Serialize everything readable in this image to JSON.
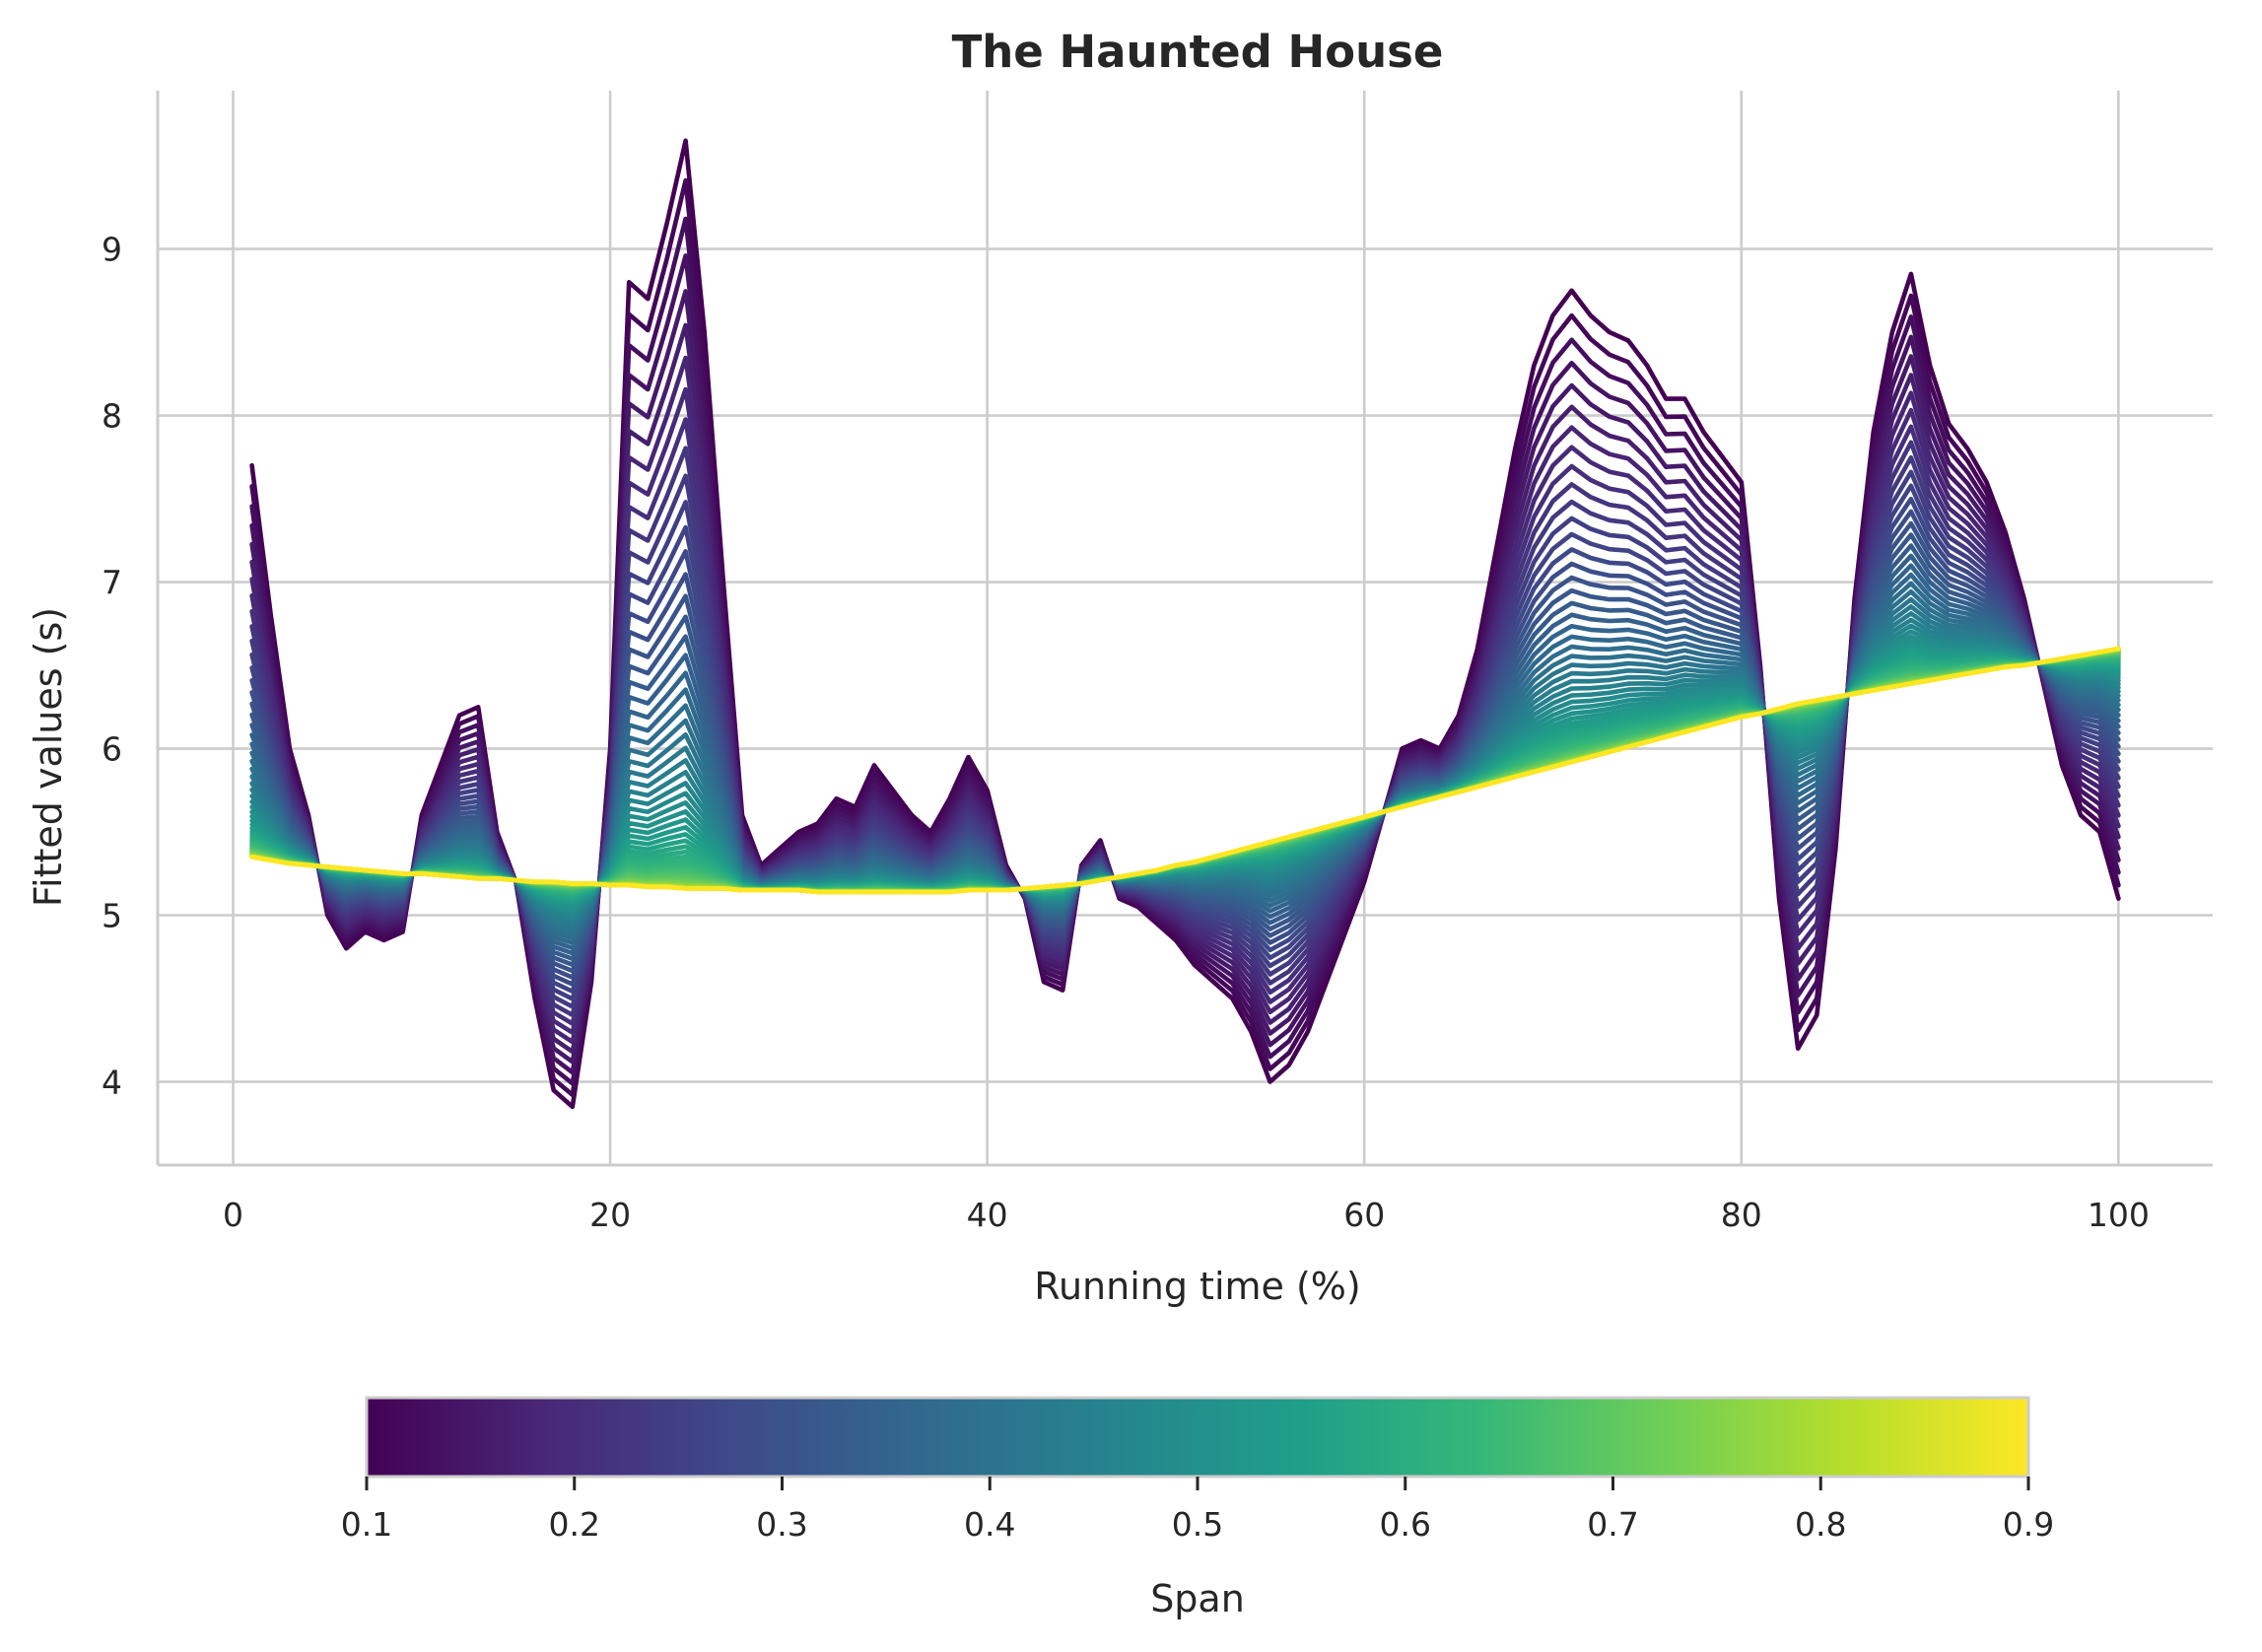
{
  "chart_data": {
    "type": "line",
    "title": "The Haunted House",
    "xlabel": "Running time (%)",
    "ylabel": "Fitted values (s)",
    "xlim": [
      -4,
      105
    ],
    "ylim": [
      3.5,
      9.95
    ],
    "xticks": [
      0,
      20,
      40,
      60,
      80,
      100
    ],
    "yticks": [
      4,
      5,
      6,
      7,
      8,
      9
    ],
    "grid": true,
    "colormap": "viridis",
    "colors": [
      "#440154",
      "#482878",
      "#3e4a89",
      "#31688e",
      "#26828e",
      "#1f9e89",
      "#35b779",
      "#6ece58",
      "#b5de2b",
      "#fde725"
    ],
    "x": [
      1,
      2,
      3,
      4,
      5,
      6,
      7,
      8,
      9,
      10,
      11,
      12,
      13,
      14,
      15,
      16,
      17,
      18,
      19,
      20,
      21,
      22,
      23,
      24,
      25,
      26,
      27,
      28,
      29,
      30,
      31,
      32,
      33,
      34,
      35,
      36,
      37,
      38,
      39,
      40,
      41,
      42,
      43,
      44,
      45,
      46,
      47,
      48,
      49,
      50,
      51,
      52,
      53,
      54,
      55,
      56,
      57,
      58,
      59,
      60,
      61,
      62,
      63,
      64,
      65,
      66,
      67,
      68,
      69,
      70,
      71,
      72,
      73,
      74,
      75,
      76,
      77,
      78,
      79,
      80,
      81,
      82,
      83,
      84,
      85,
      86,
      87,
      88,
      89,
      90,
      91,
      92,
      93,
      94,
      95,
      96,
      97,
      98,
      99,
      100
    ],
    "roughest_span_values": [
      7.7,
      6.8,
      6.0,
      5.6,
      5.0,
      4.8,
      4.9,
      4.85,
      4.9,
      5.6,
      5.9,
      6.2,
      6.25,
      5.5,
      5.2,
      4.5,
      3.95,
      3.85,
      4.6,
      6.0,
      8.8,
      8.7,
      9.15,
      9.65,
      8.5,
      7.0,
      5.6,
      5.3,
      5.4,
      5.5,
      5.55,
      5.7,
      5.65,
      5.9,
      5.75,
      5.6,
      5.5,
      5.7,
      5.95,
      5.75,
      5.3,
      5.1,
      4.6,
      4.55,
      5.3,
      5.45,
      5.1,
      5.05,
      4.95,
      4.85,
      4.7,
      4.6,
      4.5,
      4.3,
      4.0,
      4.1,
      4.3,
      4.6,
      4.9,
      5.2,
      5.6,
      6.0,
      6.05,
      6.0,
      6.2,
      6.6,
      7.2,
      7.8,
      8.3,
      8.6,
      8.75,
      8.6,
      8.5,
      8.45,
      8.3,
      8.1,
      8.1,
      7.9,
      7.75,
      7.6,
      6.5,
      5.1,
      4.2,
      4.4,
      5.4,
      6.9,
      7.9,
      8.5,
      8.85,
      8.3,
      7.95,
      7.8,
      7.6,
      7.3,
      6.9,
      6.4,
      5.9,
      5.6,
      5.5,
      5.1
    ],
    "smoothest_span_values": [
      5.35,
      5.33,
      5.31,
      5.3,
      5.29,
      5.28,
      5.27,
      5.26,
      5.25,
      5.25,
      5.24,
      5.23,
      5.22,
      5.22,
      5.21,
      5.2,
      5.2,
      5.19,
      5.19,
      5.18,
      5.18,
      5.17,
      5.17,
      5.16,
      5.16,
      5.16,
      5.15,
      5.15,
      5.15,
      5.15,
      5.14,
      5.14,
      5.14,
      5.14,
      5.14,
      5.14,
      5.14,
      5.14,
      5.15,
      5.15,
      5.15,
      5.16,
      5.17,
      5.18,
      5.19,
      5.21,
      5.23,
      5.25,
      5.27,
      5.3,
      5.32,
      5.35,
      5.38,
      5.41,
      5.44,
      5.47,
      5.5,
      5.53,
      5.56,
      5.59,
      5.62,
      5.65,
      5.68,
      5.71,
      5.74,
      5.77,
      5.8,
      5.83,
      5.86,
      5.89,
      5.92,
      5.95,
      5.98,
      6.01,
      6.04,
      6.07,
      6.1,
      6.13,
      6.16,
      6.19,
      6.21,
      6.24,
      6.27,
      6.29,
      6.31,
      6.33,
      6.35,
      6.37,
      6.39,
      6.41,
      6.43,
      6.45,
      6.47,
      6.49,
      6.5,
      6.52,
      6.54,
      6.56,
      6.58,
      6.6
    ],
    "colorbar": {
      "label": "Span",
      "range": [
        0.1,
        0.9
      ],
      "ticks": [
        "0.1",
        "0.2",
        "0.3",
        "0.4",
        "0.5",
        "0.6",
        "0.7",
        "0.8",
        "0.9"
      ]
    }
  }
}
